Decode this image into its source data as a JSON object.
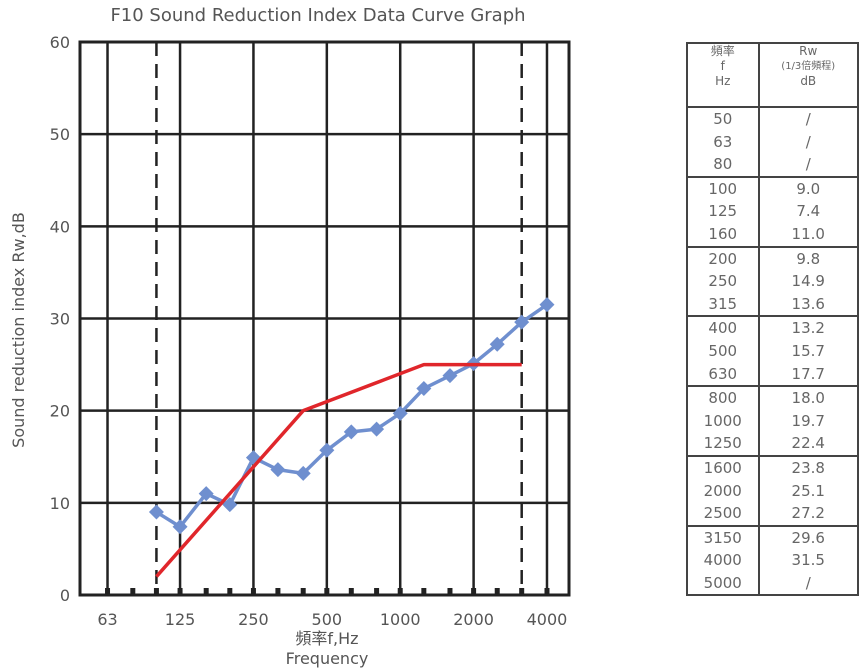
{
  "chart_data": {
    "type": "line",
    "title": "F10 Sound Reduction Index Data Curve Graph",
    "ylabel": "Sound reduction index Rw,dB",
    "xlabel": "頻率f,Hz",
    "xlabel_sub": "Frequency",
    "ylim": [
      0,
      60
    ],
    "yticks": [
      0,
      10,
      20,
      30,
      40,
      50,
      60
    ],
    "xticks": [
      "63",
      "125",
      "250",
      "500",
      "1000",
      "2000",
      "4000"
    ],
    "grid": true,
    "series": [
      {
        "color": "#6f8fcf",
        "marker": "diamond",
        "x": [
          "100",
          "125",
          "160",
          "200",
          "250",
          "315",
          "400",
          "500",
          "630",
          "800",
          "1000",
          "1250",
          "1600",
          "2000",
          "2500",
          "3150",
          "4000"
        ],
        "values": [
          9.0,
          7.4,
          11.0,
          9.8,
          14.9,
          13.6,
          13.2,
          15.7,
          17.7,
          18.0,
          19.7,
          22.4,
          23.8,
          25.1,
          27.2,
          29.6,
          31.5
        ]
      },
      {
        "color": "#e0262b",
        "marker": "none",
        "x": [
          "100",
          "400",
          "1250",
          "3150"
        ],
        "values": [
          2,
          20,
          25,
          25
        ]
      }
    ],
    "dashed_verticals": [
      "100",
      "3150"
    ]
  },
  "table": {
    "header_freq": [
      "頻率",
      "f",
      "Hz"
    ],
    "header_rw": [
      "Rw",
      "(1/3倍頻程)",
      "dB"
    ],
    "groups": [
      {
        "freq": [
          "50",
          "63",
          "80"
        ],
        "rw": [
          "/",
          "/",
          "/"
        ]
      },
      {
        "freq": [
          "100",
          "125",
          "160"
        ],
        "rw": [
          "9.0",
          "7.4",
          "11.0"
        ]
      },
      {
        "freq": [
          "200",
          "250",
          "315"
        ],
        "rw": [
          "9.8",
          "14.9",
          "13.6"
        ]
      },
      {
        "freq": [
          "400",
          "500",
          "630"
        ],
        "rw": [
          "13.2",
          "15.7",
          "17.7"
        ]
      },
      {
        "freq": [
          "800",
          "1000",
          "1250"
        ],
        "rw": [
          "18.0",
          "19.7",
          "22.4"
        ]
      },
      {
        "freq": [
          "1600",
          "2000",
          "2500"
        ],
        "rw": [
          "23.8",
          "25.1",
          "27.2"
        ]
      },
      {
        "freq": [
          "3150",
          "4000",
          "5000"
        ],
        "rw": [
          "29.6",
          "31.5",
          "/"
        ]
      }
    ]
  }
}
